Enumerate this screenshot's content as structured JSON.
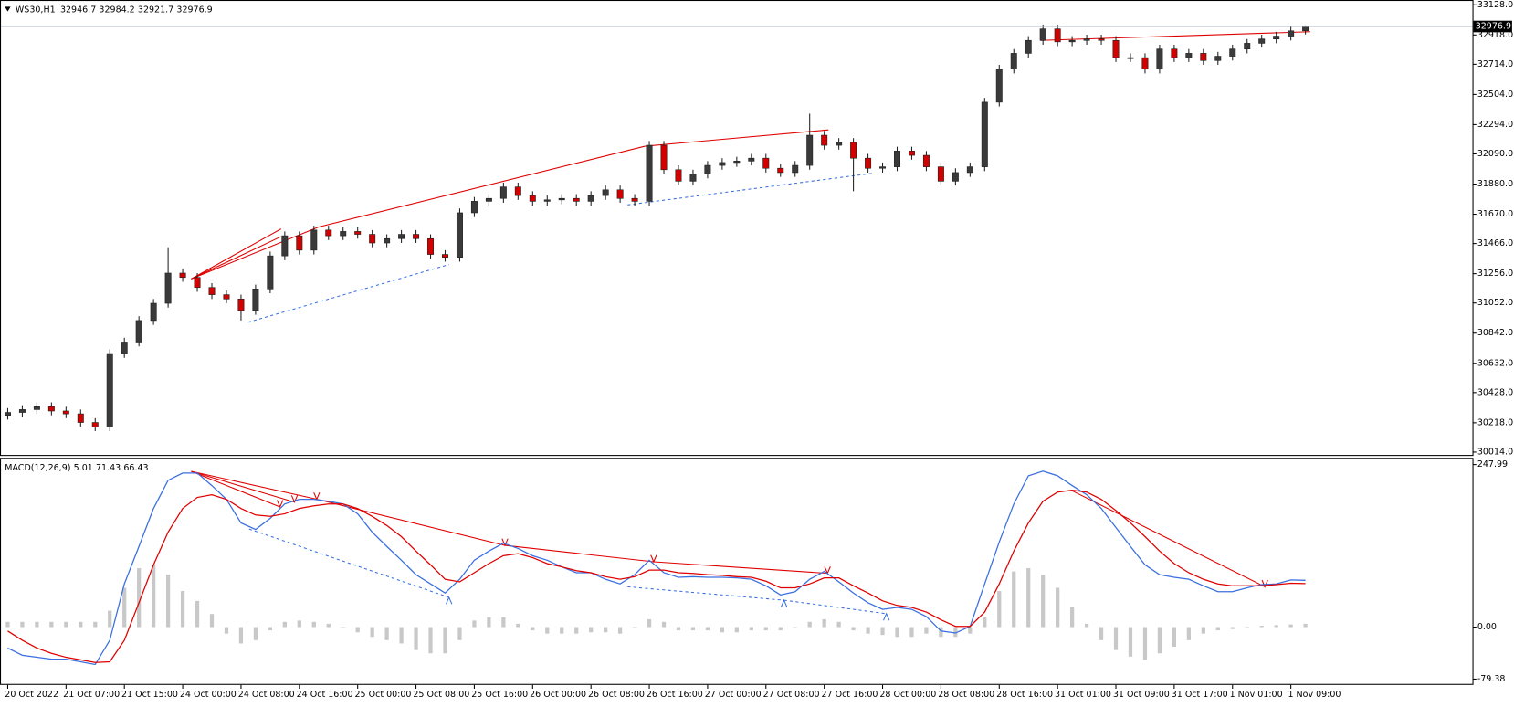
{
  "chart_data": [
    {
      "type": "candlestick",
      "title": "WS30,H1",
      "up_color": "#3a3a3a",
      "down_color": "#d40000",
      "last_price_line_color": "#b0b8c0",
      "categories": [
        "20 Oct 2022",
        null,
        null,
        null,
        "21 Oct 07:00",
        null,
        null,
        null,
        "21 Oct 15:00",
        null,
        null,
        null,
        "24 Oct 00:00",
        null,
        null,
        null,
        "24 Oct 08:00",
        null,
        null,
        null,
        "24 Oct 16:00",
        null,
        null,
        null,
        "25 Oct 00:00",
        null,
        null,
        null,
        "25 Oct 08:00",
        null,
        null,
        null,
        "25 Oct 16:00",
        null,
        null,
        null,
        "26 Oct 00:00",
        null,
        null,
        null,
        "26 Oct 08:00",
        null,
        null,
        null,
        "26 Oct 16:00",
        null,
        null,
        null,
        "27 Oct 00:00",
        null,
        null,
        null,
        "27 Oct 08:00",
        null,
        null,
        null,
        "27 Oct 16:00",
        null,
        null,
        null,
        "28 Oct 00:00",
        null,
        null,
        null,
        "28 Oct 08:00",
        null,
        null,
        null,
        "28 Oct 16:00",
        null,
        null,
        null,
        "31 Oct 01:00",
        null,
        null,
        null,
        "31 Oct 09:00",
        null,
        null,
        null,
        "31 Oct 17:00",
        null,
        null,
        null,
        "1 Nov 01:00",
        null,
        null,
        null,
        "1 Nov 09:00",
        null
      ],
      "open": [
        30270,
        30290,
        30310,
        30330,
        30300,
        30280,
        30220,
        30190,
        30700,
        30780,
        30930,
        31050,
        31260,
        31230,
        31160,
        31110,
        31080,
        31000,
        31150,
        31380,
        31520,
        31420,
        31560,
        31520,
        31550,
        31530,
        31470,
        31500,
        31530,
        31500,
        31390,
        31370,
        31680,
        31760,
        31780,
        31860,
        31800,
        31760,
        31770,
        31780,
        31760,
        31800,
        31840,
        31780,
        31760,
        32150,
        31980,
        31900,
        31950,
        32010,
        32030,
        32040,
        32060,
        31990,
        31960,
        32010,
        32220,
        32150,
        32170,
        32060,
        31990,
        32000,
        32110,
        32080,
        32000,
        31900,
        31960,
        32000,
        32450,
        32680,
        32790,
        32880,
        32960,
        32870,
        32880,
        32890,
        32880,
        32760,
        32760,
        32680,
        32820,
        32760,
        32790,
        32740,
        32770,
        32820,
        32860,
        32890,
        32910,
        32946.7
      ],
      "high": [
        30320,
        30340,
        30360,
        30360,
        30330,
        30310,
        30250,
        30730,
        30810,
        30960,
        31080,
        31440,
        31290,
        31260,
        31190,
        31140,
        31110,
        31180,
        31410,
        31550,
        31550,
        31590,
        31590,
        31580,
        31580,
        31560,
        31530,
        31560,
        31560,
        31530,
        31420,
        31710,
        31790,
        31810,
        31890,
        31890,
        31830,
        31800,
        31810,
        31810,
        31830,
        31870,
        31870,
        31810,
        32180,
        32180,
        32010,
        31980,
        32040,
        32060,
        32070,
        32090,
        32090,
        32020,
        32040,
        32370,
        32250,
        32200,
        32200,
        32090,
        32030,
        32140,
        32140,
        32110,
        32030,
        31990,
        32030,
        32480,
        32710,
        32820,
        32910,
        32990,
        32990,
        32910,
        32920,
        32920,
        32910,
        32790,
        32790,
        32850,
        32850,
        32820,
        32820,
        32800,
        32850,
        32890,
        32920,
        32940,
        32976.7,
        32984.2
      ],
      "low": [
        30240,
        30260,
        30280,
        30270,
        30250,
        30190,
        30160,
        30160,
        30670,
        30750,
        30900,
        31020,
        31200,
        31130,
        31080,
        31050,
        30930,
        30970,
        31120,
        31350,
        31390,
        31390,
        31490,
        31490,
        31500,
        31440,
        31440,
        31470,
        31470,
        31360,
        31340,
        31340,
        31650,
        31730,
        31750,
        31770,
        31730,
        31730,
        31740,
        31730,
        31730,
        31770,
        31750,
        31730,
        31730,
        31950,
        31870,
        31870,
        31920,
        31980,
        32000,
        32010,
        31960,
        31930,
        31930,
        31980,
        32120,
        32120,
        31830,
        31960,
        31960,
        31970,
        32050,
        31970,
        31870,
        31870,
        31930,
        31970,
        32420,
        32650,
        32760,
        32850,
        32840,
        32840,
        32850,
        32850,
        32730,
        32730,
        32650,
        32650,
        32730,
        32730,
        32710,
        32710,
        32740,
        32790,
        32830,
        32860,
        32880,
        32921.7
      ],
      "close": [
        30290,
        30310,
        30330,
        30300,
        30280,
        30220,
        30190,
        30700,
        30780,
        30930,
        31050,
        31260,
        31230,
        31160,
        31110,
        31080,
        31000,
        31150,
        31380,
        31520,
        31420,
        31560,
        31520,
        31550,
        31530,
        31470,
        31500,
        31530,
        31500,
        31390,
        31370,
        31680,
        31760,
        31780,
        31860,
        31800,
        31760,
        31770,
        31780,
        31760,
        31800,
        31840,
        31780,
        31760,
        32150,
        31980,
        31900,
        31950,
        32010,
        32030,
        32040,
        32060,
        31990,
        31960,
        32010,
        32220,
        32150,
        32170,
        32060,
        31990,
        32000,
        32110,
        32080,
        32000,
        31900,
        31960,
        32000,
        32450,
        32680,
        32790,
        32880,
        32960,
        32870,
        32880,
        32890,
        32880,
        32760,
        32760,
        32680,
        32820,
        32760,
        32790,
        32740,
        32770,
        32820,
        32860,
        32890,
        32910,
        32946.7,
        32976.9
      ],
      "ylim": [
        30014,
        33128
      ],
      "yticks": [
        {
          "value": 33128,
          "label": "33128.0"
        },
        {
          "value": 32918,
          "label": "32918.0"
        },
        {
          "value": 32714,
          "label": "32714.0"
        },
        {
          "value": 32504,
          "label": "32504.0"
        },
        {
          "value": 32294,
          "label": "32294.0"
        },
        {
          "value": 32090,
          "label": "32090.0"
        },
        {
          "value": 31880,
          "label": "31880.0"
        },
        {
          "value": 31670,
          "label": "31670.0"
        },
        {
          "value": 31466,
          "label": "31466.0"
        },
        {
          "value": 31256,
          "label": "31256.0"
        },
        {
          "value": 31052,
          "label": "31052.0"
        },
        {
          "value": 30842,
          "label": "30842.0"
        },
        {
          "value": 30632,
          "label": "30632.0"
        },
        {
          "value": 30428,
          "label": "30428.0"
        },
        {
          "value": 30218,
          "label": "30218.0"
        },
        {
          "value": 30014,
          "label": "30014.0"
        }
      ]
    },
    {
      "type": "macd",
      "title": "MACD(12,26,9)",
      "histogram_color": "#c8c8c8",
      "macd_color": "#3a6fe0",
      "signal_color": "#e00000",
      "histogram": [
        8,
        8,
        8,
        8,
        8,
        8,
        8,
        25,
        60,
        90,
        95,
        80,
        55,
        40,
        20,
        -10,
        -25,
        -20,
        -5,
        8,
        10,
        8,
        5,
        0,
        -8,
        -15,
        -20,
        -25,
        -35,
        -40,
        -40,
        -20,
        10,
        15,
        15,
        5,
        -5,
        -10,
        -10,
        -10,
        -8,
        -8,
        -10,
        0,
        12,
        8,
        -5,
        -5,
        -5,
        -8,
        -8,
        -5,
        -5,
        -5,
        0,
        8,
        12,
        8,
        -5,
        -10,
        -12,
        -15,
        -15,
        -10,
        -15,
        -15,
        -10,
        15,
        55,
        85,
        90,
        80,
        60,
        30,
        5,
        -20,
        -35,
        -45,
        -50,
        -40,
        -30,
        -20,
        -10,
        -5,
        -3,
        0,
        2,
        3,
        4,
        5.01
      ],
      "macd": [
        -32,
        -43,
        -46,
        -49,
        -49,
        -53,
        -57,
        -20,
        66,
        123,
        181,
        224,
        235,
        235,
        216,
        195,
        159,
        149,
        166,
        188,
        195,
        195,
        192,
        188,
        173,
        145,
        123,
        102,
        80,
        66,
        52,
        73,
        102,
        116,
        128,
        120,
        109,
        102,
        92,
        83,
        83,
        73,
        66,
        80,
        102,
        83,
        76,
        77,
        76,
        76,
        75,
        73,
        63,
        49,
        54,
        73,
        85,
        69,
        52,
        37,
        27,
        30,
        27,
        16,
        -6,
        -9,
        1,
        66,
        130,
        188,
        231,
        238,
        231,
        216,
        202,
        181,
        152,
        123,
        95,
        80,
        76,
        73,
        63,
        54,
        54,
        60,
        65,
        66,
        72,
        71.43
      ],
      "signal": [
        -6,
        -20,
        -32,
        -40,
        -46,
        -50,
        -54,
        -53,
        -20,
        37,
        95,
        145,
        181,
        198,
        202,
        195,
        181,
        171,
        169,
        173,
        181,
        185,
        188,
        188,
        181,
        169,
        155,
        138,
        116,
        95,
        73,
        69,
        83,
        97,
        109,
        112,
        106,
        97,
        92,
        86,
        83,
        77,
        73,
        77,
        87,
        87,
        83,
        82,
        80,
        79,
        77,
        76,
        70,
        60,
        60,
        66,
        75,
        75,
        63,
        52,
        40,
        33,
        30,
        23,
        11,
        1,
        1,
        23,
        66,
        116,
        159,
        192,
        206,
        209,
        206,
        195,
        178,
        159,
        138,
        116,
        97,
        83,
        73,
        66,
        63,
        63,
        63,
        65,
        67,
        66.43
      ],
      "ylim": [
        -79.38,
        247.99
      ],
      "yticks": [
        247.99,
        {
          "value": 0,
          "label": "0.00"
        },
        -79.38
      ]
    }
  ]
}
